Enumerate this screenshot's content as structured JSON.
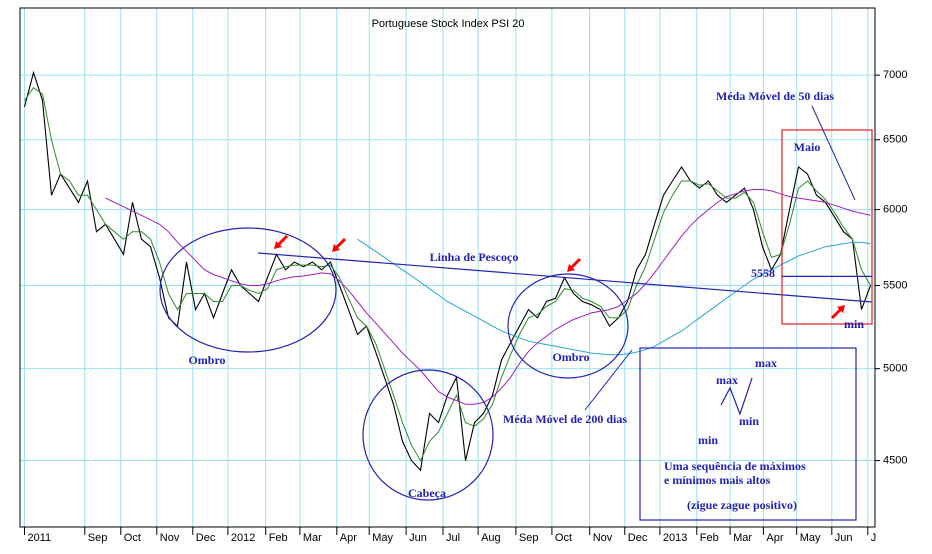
{
  "chart_data": {
    "type": "line",
    "title": "Portuguese Stock Index PSI 20",
    "log_scale": true,
    "grid": true,
    "xlim": [
      -0.5,
      94.5
    ],
    "xticks": [
      {
        "value": 0,
        "label": "2011"
      },
      {
        "value": 6.7,
        "label": "Sep"
      },
      {
        "value": 10.7,
        "label": "Oct"
      },
      {
        "value": 14.7,
        "label": "Nov"
      },
      {
        "value": 18.7,
        "label": "Dec"
      },
      {
        "value": 22.6,
        "label": "2012"
      },
      {
        "value": 26.8,
        "label": "Feb"
      },
      {
        "value": 30.6,
        "label": "Mar"
      },
      {
        "value": 34.7,
        "label": "Apr"
      },
      {
        "value": 38.3,
        "label": "May"
      },
      {
        "value": 42.4,
        "label": "Jun"
      },
      {
        "value": 46.5,
        "label": "Jul"
      },
      {
        "value": 50.4,
        "label": "Aug"
      },
      {
        "value": 54.6,
        "label": "Sep"
      },
      {
        "value": 58.6,
        "label": "Oct"
      },
      {
        "value": 62.8,
        "label": "Nov"
      },
      {
        "value": 66.7,
        "label": "Dec"
      },
      {
        "value": 70.6,
        "label": "2013"
      },
      {
        "value": 74.7,
        "label": "Feb"
      },
      {
        "value": 78.4,
        "label": "Mar"
      },
      {
        "value": 82.1,
        "label": "Apr"
      },
      {
        "value": 85.8,
        "label": "May"
      },
      {
        "value": 89.7,
        "label": "Jun"
      },
      {
        "value": 93.7,
        "label": "J"
      }
    ],
    "ylim": [
      4170,
      7560
    ],
    "yticks": [
      4500,
      5000,
      5500,
      6000,
      6500,
      7000
    ],
    "series": [
      {
        "color": "#000000",
        "values": [
          6750,
          7020,
          6800,
          6100,
          6250,
          6150,
          6050,
          6200,
          5850,
          5900,
          5800,
          5700,
          6050,
          5800,
          5750,
          5550,
          5300,
          5250,
          5650,
          5350,
          5450,
          5300,
          5450,
          5600,
          5500,
          5450,
          5400,
          5550,
          5700,
          5600,
          5650,
          5620,
          5650,
          5600,
          5650,
          5500,
          5350,
          5200,
          5250,
          5100,
          4950,
          4800,
          4600,
          4500,
          4450,
          4750,
          4700,
          4850,
          4950,
          4500,
          4700,
          4750,
          4850,
          5050,
          5150,
          5250,
          5350,
          5300,
          5400,
          5420,
          5550,
          5450,
          5400,
          5380,
          5350,
          5250,
          5300,
          5400,
          5600,
          5700,
          5900,
          6100,
          6200,
          6300,
          6200,
          6150,
          6200,
          6100,
          6050,
          6100,
          6150,
          6000,
          5750,
          5600,
          5700,
          6000,
          6300,
          6250,
          6100,
          6050,
          5950,
          5850,
          5800,
          5350,
          5500
        ]
      },
      {
        "color": "#2e8b2e",
        "values": [
          6800,
          6900,
          6850,
          6500,
          6250,
          6200,
          6100,
          6100,
          6000,
          5900,
          5850,
          5800,
          5850,
          5850,
          5800,
          5650,
          5450,
          5350,
          5450,
          5450,
          5450,
          5400,
          5400,
          5500,
          5500,
          5470,
          5450,
          5480,
          5600,
          5620,
          5630,
          5630,
          5630,
          5620,
          5630,
          5550,
          5420,
          5300,
          5250,
          5150,
          5000,
          4850,
          4700,
          4580,
          4500,
          4600,
          4650,
          4750,
          4850,
          4700,
          4680,
          4720,
          4800,
          4950,
          5080,
          5200,
          5300,
          5320,
          5370,
          5400,
          5480,
          5470,
          5420,
          5400,
          5370,
          5300,
          5300,
          5350,
          5500,
          5620,
          5800,
          5980,
          6100,
          6200,
          6200,
          6170,
          6180,
          6130,
          6080,
          6080,
          6120,
          6050,
          5850,
          5680,
          5700,
          5900,
          6150,
          6200,
          6130,
          6070,
          5980,
          5880,
          5800,
          5600,
          5500
        ]
      },
      {
        "color": "#a020c0",
        "values": [
          null,
          null,
          null,
          null,
          null,
          null,
          null,
          null,
          null,
          6080,
          6050,
          6020,
          5990,
          5960,
          5930,
          5900,
          5850,
          5780,
          5720,
          5660,
          5600,
          5570,
          5550,
          5530,
          5510,
          5500,
          5500,
          5510,
          5530,
          5545,
          5555,
          5560,
          5570,
          5580,
          5575,
          5530,
          5470,
          5400,
          5330,
          5270,
          5210,
          5150,
          5090,
          5040,
          4990,
          4930,
          4870,
          4840,
          4820,
          4800,
          4800,
          4810,
          4840,
          4890,
          4950,
          5030,
          5100,
          5150,
          5190,
          5230,
          5260,
          5290,
          5310,
          5330,
          5340,
          5350,
          5370,
          5410,
          5450,
          5510,
          5580,
          5660,
          5740,
          5820,
          5890,
          5950,
          6000,
          6050,
          6090,
          6110,
          6130,
          6140,
          6140,
          6130,
          6110,
          6090,
          6080,
          6070,
          6060,
          6050,
          6030,
          6010,
          5990,
          5975,
          5960
        ]
      },
      {
        "color": "#2aa5d8",
        "values": [
          null,
          null,
          null,
          null,
          null,
          null,
          null,
          null,
          null,
          null,
          null,
          null,
          null,
          null,
          null,
          null,
          null,
          null,
          null,
          null,
          null,
          null,
          null,
          null,
          null,
          null,
          null,
          null,
          null,
          null,
          null,
          null,
          null,
          null,
          null,
          null,
          null,
          5800,
          5760,
          5720,
          5680,
          5640,
          5600,
          5560,
          5520,
          5480,
          5440,
          5400,
          5370,
          5340,
          5310,
          5280,
          5250,
          5220,
          5200,
          5180,
          5160,
          5150,
          5140,
          5130,
          5120,
          5110,
          5100,
          5090,
          5085,
          5080,
          5080,
          5085,
          5095,
          5110,
          5130,
          5160,
          5190,
          5220,
          5260,
          5300,
          5340,
          5380,
          5420,
          5460,
          5500,
          5540,
          5570,
          5600,
          5630,
          5660,
          5690,
          5710,
          5730,
          5750,
          5760,
          5770,
          5780,
          5780,
          5770
        ]
      }
    ],
    "reference_line": 5558,
    "annotations": [
      "Méda Móvel de 50 dias",
      "Maio",
      "Linha de Pescoço",
      "Ombro",
      "Ombro",
      "Cabeça",
      "Méda Móvel de 200 dias",
      "min",
      "max",
      "max",
      "min",
      "min",
      "Uma sequência de máximos",
      "e mínimos mais altos",
      "(zigue zague positivo)"
    ]
  }
}
